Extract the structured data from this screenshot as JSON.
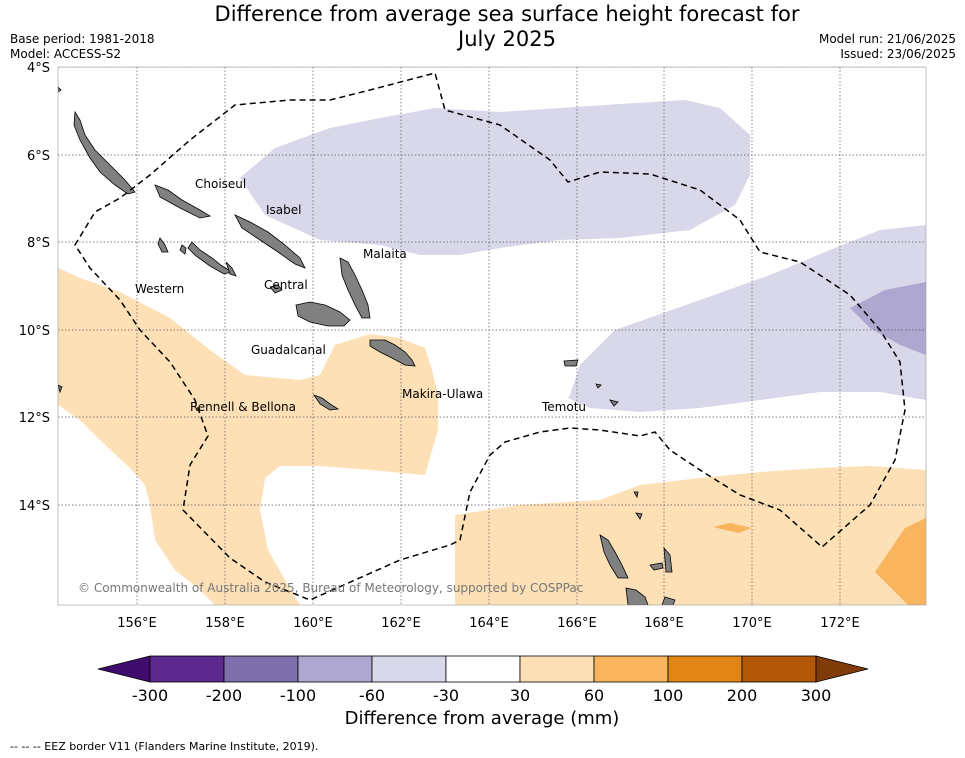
{
  "title_line1": "Difference from average sea surface height forecast for",
  "title_line2": "July 2025",
  "base_period": "Base period: 1981-2018",
  "model": "Model: ACCESS-S2",
  "model_run": "Model run: 21/06/2025",
  "issued": "Issued: 23/06/2025",
  "copyright": "© Commonwealth of Australia 2025, Bureau of Meteorology, supported by COSPPac",
  "lat_labels": [
    "4°S",
    "6°S",
    "8°S",
    "10°S",
    "12°S",
    "14°S"
  ],
  "lon_labels": [
    "156°E",
    "158°E",
    "160°E",
    "162°E",
    "164°E",
    "166°E",
    "168°E",
    "170°E",
    "172°E"
  ],
  "regions": [
    "Choiseul",
    "Isabel",
    "Malaita",
    "Western",
    "Central",
    "Guadalcanal",
    "Makira-Ulawa",
    "Rennell & Bellona",
    "Temotu"
  ],
  "colorbar": {
    "title": "Difference from average (mm)",
    "ticks": [
      "-300",
      "-200",
      "-100",
      "-60",
      "-30",
      "30",
      "60",
      "100",
      "200",
      "300"
    ],
    "colors": [
      "#3f0c6e",
      "#5b2a8c",
      "#7d70ac",
      "#aea7d0",
      "#d8d8ea",
      "#ffffff",
      "#fde0b6",
      "#f9b45e",
      "#e08516",
      "#b35807",
      "#7f3b08"
    ]
  },
  "footnote": "--  --  -- EEZ border V11 (Flanders Marine Institute, 2019)."
}
